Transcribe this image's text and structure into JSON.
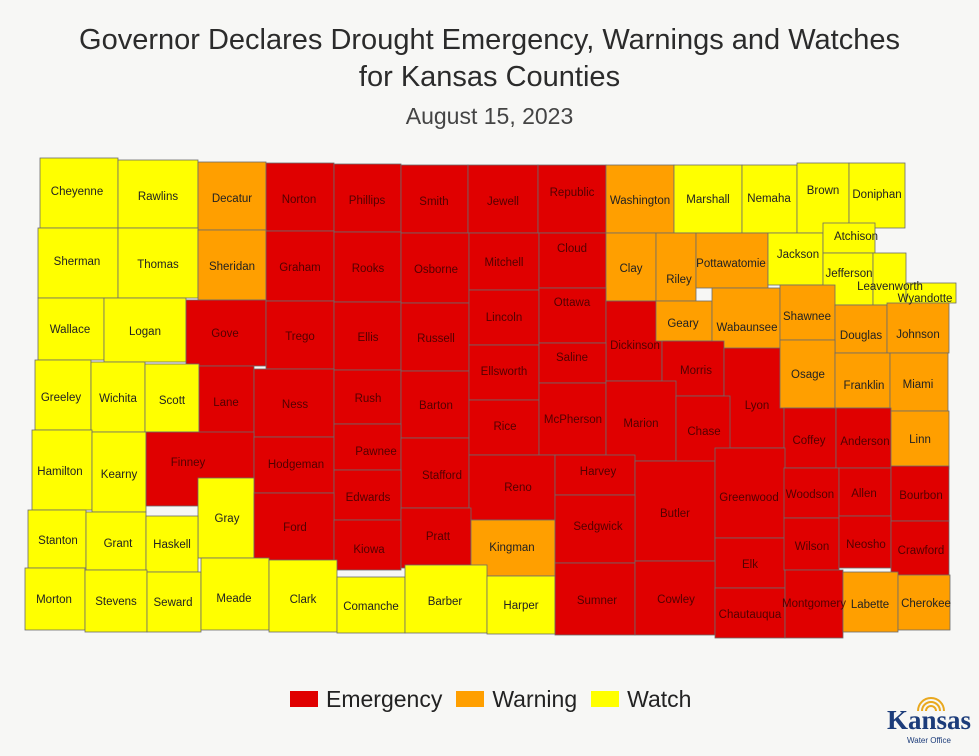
{
  "title_line1": "Governor Declares Drought Emergency, Warnings and Watches",
  "title_line2": "for Kansas Counties",
  "subtitle": "August 15, 2023",
  "colors": {
    "emergency": "#e00000",
    "warning": "#ff9f00",
    "watch": "#ffff00"
  },
  "legend": [
    {
      "status": "emergency",
      "label": "Emergency"
    },
    {
      "status": "warning",
      "label": "Warning"
    },
    {
      "status": "watch",
      "label": "Watch"
    }
  ],
  "counties": [
    {
      "name": "Cheyenne",
      "status": "watch"
    },
    {
      "name": "Rawlins",
      "status": "watch"
    },
    {
      "name": "Decatur",
      "status": "warning"
    },
    {
      "name": "Norton",
      "status": "emergency"
    },
    {
      "name": "Phillips",
      "status": "emergency"
    },
    {
      "name": "Smith",
      "status": "emergency"
    },
    {
      "name": "Jewell",
      "status": "emergency"
    },
    {
      "name": "Republic",
      "status": "emergency"
    },
    {
      "name": "Washington",
      "status": "warning"
    },
    {
      "name": "Marshall",
      "status": "watch"
    },
    {
      "name": "Nemaha",
      "status": "watch"
    },
    {
      "name": "Brown",
      "status": "watch"
    },
    {
      "name": "Doniphan",
      "status": "watch"
    },
    {
      "name": "Sherman",
      "status": "watch"
    },
    {
      "name": "Thomas",
      "status": "watch"
    },
    {
      "name": "Sheridan",
      "status": "warning"
    },
    {
      "name": "Graham",
      "status": "emergency"
    },
    {
      "name": "Rooks",
      "status": "emergency"
    },
    {
      "name": "Osborne",
      "status": "emergency"
    },
    {
      "name": "Mitchell",
      "status": "emergency"
    },
    {
      "name": "Cloud",
      "status": "emergency"
    },
    {
      "name": "Clay",
      "status": "warning"
    },
    {
      "name": "Riley",
      "status": "warning"
    },
    {
      "name": "Pottawatomie",
      "status": "warning"
    },
    {
      "name": "Jackson",
      "status": "watch"
    },
    {
      "name": "Atchison",
      "status": "watch"
    },
    {
      "name": "Jefferson",
      "status": "watch"
    },
    {
      "name": "Leavenworth",
      "status": "watch"
    },
    {
      "name": "Wyandotte",
      "status": "watch"
    },
    {
      "name": "Wallace",
      "status": "watch"
    },
    {
      "name": "Logan",
      "status": "watch"
    },
    {
      "name": "Gove",
      "status": "emergency"
    },
    {
      "name": "Trego",
      "status": "emergency"
    },
    {
      "name": "Ellis",
      "status": "emergency"
    },
    {
      "name": "Russell",
      "status": "emergency"
    },
    {
      "name": "Lincoln",
      "status": "emergency"
    },
    {
      "name": "Ottawa",
      "status": "emergency"
    },
    {
      "name": "Dickinson",
      "status": "emergency"
    },
    {
      "name": "Geary",
      "status": "warning"
    },
    {
      "name": "Wabaunsee",
      "status": "warning"
    },
    {
      "name": "Shawnee",
      "status": "warning"
    },
    {
      "name": "Douglas",
      "status": "warning"
    },
    {
      "name": "Johnson",
      "status": "warning"
    },
    {
      "name": "Greeley",
      "status": "watch"
    },
    {
      "name": "Wichita",
      "status": "watch"
    },
    {
      "name": "Scott",
      "status": "watch"
    },
    {
      "name": "Lane",
      "status": "emergency"
    },
    {
      "name": "Ness",
      "status": "emergency"
    },
    {
      "name": "Rush",
      "status": "emergency"
    },
    {
      "name": "Barton",
      "status": "emergency"
    },
    {
      "name": "Ellsworth",
      "status": "emergency"
    },
    {
      "name": "Saline",
      "status": "emergency"
    },
    {
      "name": "Morris",
      "status": "emergency"
    },
    {
      "name": "Lyon",
      "status": "emergency"
    },
    {
      "name": "Osage",
      "status": "warning"
    },
    {
      "name": "Franklin",
      "status": "warning"
    },
    {
      "name": "Miami",
      "status": "warning"
    },
    {
      "name": "Hamilton",
      "status": "watch"
    },
    {
      "name": "Kearny",
      "status": "watch"
    },
    {
      "name": "Finney",
      "status": "emergency"
    },
    {
      "name": "Hodgeman",
      "status": "emergency"
    },
    {
      "name": "Pawnee",
      "status": "emergency"
    },
    {
      "name": "Stafford",
      "status": "emergency"
    },
    {
      "name": "Rice",
      "status": "emergency"
    },
    {
      "name": "McPherson",
      "status": "emergency"
    },
    {
      "name": "Marion",
      "status": "emergency"
    },
    {
      "name": "Chase",
      "status": "emergency"
    },
    {
      "name": "Coffey",
      "status": "emergency"
    },
    {
      "name": "Anderson",
      "status": "emergency"
    },
    {
      "name": "Linn",
      "status": "warning"
    },
    {
      "name": "Gray",
      "status": "watch"
    },
    {
      "name": "Edwards",
      "status": "emergency"
    },
    {
      "name": "Reno",
      "status": "emergency"
    },
    {
      "name": "Harvey",
      "status": "emergency"
    },
    {
      "name": "Butler",
      "status": "emergency"
    },
    {
      "name": "Greenwood",
      "status": "emergency"
    },
    {
      "name": "Woodson",
      "status": "emergency"
    },
    {
      "name": "Allen",
      "status": "emergency"
    },
    {
      "name": "Bourbon",
      "status": "emergency"
    },
    {
      "name": "Stanton",
      "status": "watch"
    },
    {
      "name": "Grant",
      "status": "watch"
    },
    {
      "name": "Haskell",
      "status": "watch"
    },
    {
      "name": "Ford",
      "status": "emergency"
    },
    {
      "name": "Kiowa",
      "status": "emergency"
    },
    {
      "name": "Pratt",
      "status": "emergency"
    },
    {
      "name": "Kingman",
      "status": "warning"
    },
    {
      "name": "Sedgwick",
      "status": "emergency"
    },
    {
      "name": "Elk",
      "status": "emergency"
    },
    {
      "name": "Wilson",
      "status": "emergency"
    },
    {
      "name": "Neosho",
      "status": "emergency"
    },
    {
      "name": "Crawford",
      "status": "emergency"
    },
    {
      "name": "Morton",
      "status": "watch"
    },
    {
      "name": "Stevens",
      "status": "watch"
    },
    {
      "name": "Seward",
      "status": "watch"
    },
    {
      "name": "Meade",
      "status": "watch"
    },
    {
      "name": "Clark",
      "status": "watch"
    },
    {
      "name": "Comanche",
      "status": "watch"
    },
    {
      "name": "Barber",
      "status": "watch"
    },
    {
      "name": "Harper",
      "status": "watch"
    },
    {
      "name": "Sumner",
      "status": "emergency"
    },
    {
      "name": "Cowley",
      "status": "emergency"
    },
    {
      "name": "Chautauqua",
      "status": "emergency"
    },
    {
      "name": "Montgomery",
      "status": "emergency"
    },
    {
      "name": "Labette",
      "status": "warning"
    },
    {
      "name": "Cherokee",
      "status": "warning"
    }
  ],
  "logo": {
    "name": "Kansas",
    "subtext": "Water Office"
  }
}
